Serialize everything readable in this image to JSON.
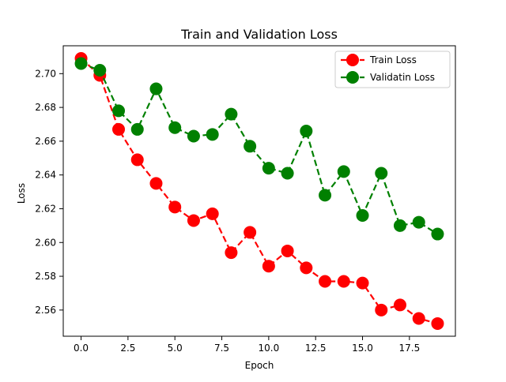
{
  "chart_data": {
    "type": "line",
    "title": "Train and Validation Loss",
    "xlabel": "Epoch",
    "ylabel": "Loss",
    "xlim": [
      -0.95,
      19.95
    ],
    "ylim": [
      2.5445,
      2.7165
    ],
    "x_ticks": [
      0.0,
      2.5,
      5.0,
      7.5,
      10.0,
      12.5,
      15.0,
      17.5
    ],
    "x_tick_labels": [
      "0.0",
      "2.5",
      "5.0",
      "7.5",
      "10.0",
      "12.5",
      "15.0",
      "17.5"
    ],
    "y_ticks": [
      2.56,
      2.58,
      2.6,
      2.62,
      2.64,
      2.66,
      2.68,
      2.7
    ],
    "y_tick_labels": [
      "2.56",
      "2.58",
      "2.60",
      "2.62",
      "2.64",
      "2.66",
      "2.68",
      "2.70"
    ],
    "grid": false,
    "legend_position": "top-right",
    "x": [
      0,
      1,
      2,
      3,
      4,
      5,
      6,
      7,
      8,
      9,
      10,
      11,
      12,
      13,
      14,
      15,
      16,
      17,
      18,
      19
    ],
    "series": [
      {
        "name": "Train Loss",
        "color": "#ff0000",
        "linestyle": "dashed",
        "marker": "circle",
        "values": [
          2.709,
          2.699,
          2.667,
          2.649,
          2.635,
          2.621,
          2.613,
          2.617,
          2.594,
          2.606,
          2.586,
          2.595,
          2.585,
          2.577,
          2.577,
          2.576,
          2.56,
          2.563,
          2.555,
          2.552
        ]
      },
      {
        "name": "Validatin Loss",
        "color": "#008000",
        "linestyle": "dashed",
        "marker": "circle",
        "values": [
          2.706,
          2.702,
          2.678,
          2.667,
          2.691,
          2.668,
          2.663,
          2.664,
          2.676,
          2.657,
          2.644,
          2.641,
          2.666,
          2.628,
          2.642,
          2.616,
          2.641,
          2.61,
          2.612,
          2.605
        ]
      }
    ]
  }
}
